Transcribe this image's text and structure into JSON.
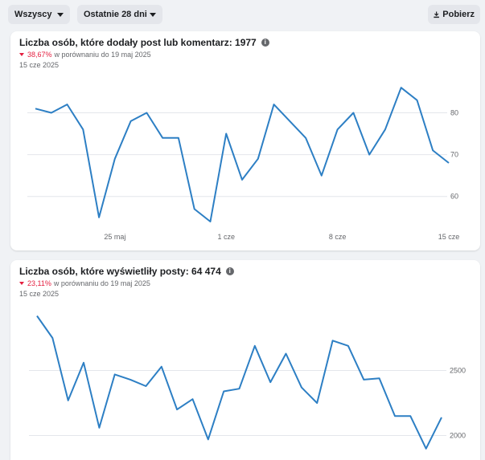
{
  "toolbar": {
    "audience_filter": "Wszyscy",
    "period_filter": "Ostatnie 28 dni",
    "download_label": "Pobierz"
  },
  "chart_data": [
    {
      "type": "line",
      "title": "Liczba osób, które dodały post lub komentarz: 1977",
      "change": "38,67%",
      "comparison": "w porównaniu do 19 maj 2025",
      "date_label": "15 cze 2025",
      "x_tick_labels": [
        "25 maj",
        "1 cze",
        "8 cze",
        "15 cze"
      ],
      "y_ticks": [
        60,
        70,
        80
      ],
      "ylim": [
        54,
        87
      ],
      "color": "#2d7fc4",
      "series": [
        {
          "values": [
            81,
            80,
            82,
            76,
            55,
            69,
            78,
            80,
            74,
            74,
            57,
            54,
            75,
            64,
            69,
            82,
            78,
            74,
            65,
            76,
            80,
            70,
            76,
            86,
            83,
            71,
            68
          ]
        }
      ]
    },
    {
      "type": "line",
      "title": "Liczba osób, które wyświetliły posty: 64 474",
      "change": "23,11%",
      "comparison": "w porównaniu do 19 maj 2025",
      "date_label": "15 cze 2025",
      "y_ticks": [
        2000,
        2500
      ],
      "ylim": [
        1880,
        2960
      ],
      "color": "#2d7fc4",
      "series": [
        {
          "values": [
            2920,
            2750,
            2270,
            2560,
            2060,
            2470,
            2430,
            2380,
            2530,
            2200,
            2280,
            1970,
            2340,
            2360,
            2690,
            2410,
            2630,
            2370,
            2250,
            2730,
            2690,
            2430,
            2440,
            2150,
            2150,
            1900,
            2140
          ]
        }
      ]
    }
  ]
}
